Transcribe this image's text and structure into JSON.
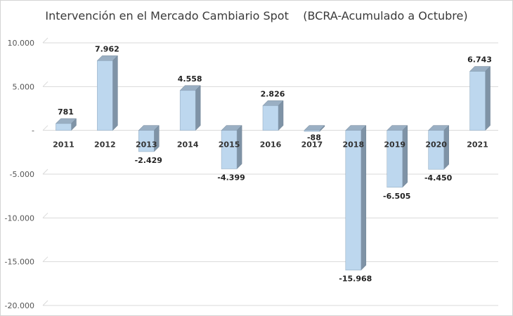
{
  "chart_data": {
    "type": "bar",
    "title": "Intervención en el Mercado Cambiario Spot    (BCRA-Acumulado a Octubre)",
    "xlabel": "",
    "ylabel": "",
    "categories": [
      "2011",
      "2012",
      "2013",
      "2014",
      "2015",
      "2016",
      "2017",
      "2018",
      "2019",
      "2020",
      "2021"
    ],
    "values": [
      781,
      7962,
      -2429,
      4558,
      -4399,
      2826,
      -88,
      -15968,
      -6505,
      -4450,
      6743
    ],
    "data_labels": [
      "781",
      "7.962",
      "-2.429",
      "4.558",
      "-4.399",
      "2.826",
      "-88",
      "-15.968",
      "-6.505",
      "-4.450",
      "6.743"
    ],
    "ylim": [
      -20000,
      10000
    ],
    "yticks": [
      10000,
      5000,
      0,
      -5000,
      -10000,
      -15000,
      -20000
    ],
    "ytick_labels": [
      "10.000",
      "5.000",
      "-",
      "-5.000",
      "-10.000",
      "-15.000",
      "-20.000"
    ],
    "grid": true,
    "legend": "none",
    "style": "3d-bar",
    "colors": {
      "bar_front": "#bdd7ee",
      "bar_side": "#7f93a6",
      "bar_top": "#9aafc3",
      "gridline": "#d9d9d9"
    }
  }
}
